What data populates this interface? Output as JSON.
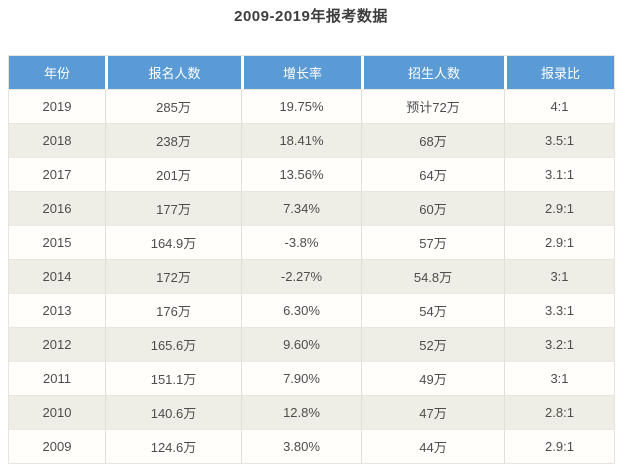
{
  "page": {
    "title": "2009-2019年报考数据"
  },
  "colors": {
    "header_bg": "#5b9bd5",
    "header_text": "#ffffff",
    "row_bg": "#fffefb",
    "row_alt_bg": "#efeee6",
    "body_text": "#4d4d4d",
    "title_text": "#3d3d3d",
    "divider": "#e2e1d9"
  },
  "table": {
    "headers": [
      "年份",
      "报名人数",
      "增长率",
      "招生人数",
      "报录比"
    ],
    "rows": [
      [
        "2019",
        "285万",
        "19.75%",
        "预计72万",
        "4:1"
      ],
      [
        "2018",
        "238万",
        "18.41%",
        "68万",
        "3.5:1"
      ],
      [
        "2017",
        "201万",
        "13.56%",
        "64万",
        "3.1:1"
      ],
      [
        "2016",
        "177万",
        "7.34%",
        "60万",
        "2.9:1"
      ],
      [
        "2015",
        "164.9万",
        "-3.8%",
        "57万",
        "2.9:1"
      ],
      [
        "2014",
        "172万",
        "-2.27%",
        "54.8万",
        "3:1"
      ],
      [
        "2013",
        "176万",
        "6.30%",
        "54万",
        "3.3:1"
      ],
      [
        "2012",
        "165.6万",
        "9.60%",
        "52万",
        "3.2:1"
      ],
      [
        "2011",
        "151.1万",
        "7.90%",
        "49万",
        "3:1"
      ],
      [
        "2010",
        "140.6万",
        "12.8%",
        "47万",
        "2.8:1"
      ],
      [
        "2009",
        "124.6万",
        "3.80%",
        "44万",
        "2.9:1"
      ]
    ]
  },
  "chart_data": {
    "type": "table",
    "title": "2009-2019年报考数据",
    "columns": [
      "年份",
      "报名人数",
      "增长率",
      "招生人数",
      "报录比"
    ],
    "rows": [
      [
        "2019",
        "285万",
        "19.75%",
        "预计72万",
        "4:1"
      ],
      [
        "2018",
        "238万",
        "18.41%",
        "68万",
        "3.5:1"
      ],
      [
        "2017",
        "201万",
        "13.56%",
        "64万",
        "3.1:1"
      ],
      [
        "2016",
        "177万",
        "7.34%",
        "60万",
        "2.9:1"
      ],
      [
        "2015",
        "164.9万",
        "-3.8%",
        "57万",
        "2.9:1"
      ],
      [
        "2014",
        "172万",
        "-2.27%",
        "54.8万",
        "3:1"
      ],
      [
        "2013",
        "176万",
        "6.30%",
        "54万",
        "3.3:1"
      ],
      [
        "2012",
        "165.6万",
        "9.60%",
        "52万",
        "3.2:1"
      ],
      [
        "2011",
        "151.1万",
        "7.90%",
        "49万",
        "3:1"
      ],
      [
        "2010",
        "140.6万",
        "12.8%",
        "47万",
        "2.8:1"
      ],
      [
        "2009",
        "124.6万",
        "3.80%",
        "44万",
        "2.9:1"
      ]
    ],
    "series": [
      {
        "name": "报名人数(万)",
        "x": [
          2009,
          2010,
          2011,
          2012,
          2013,
          2014,
          2015,
          2016,
          2017,
          2018,
          2019
        ],
        "values": [
          124.6,
          140.6,
          151.1,
          165.6,
          176,
          172,
          164.9,
          177,
          201,
          238,
          285
        ]
      },
      {
        "name": "增长率(%)",
        "x": [
          2009,
          2010,
          2011,
          2012,
          2013,
          2014,
          2015,
          2016,
          2017,
          2018,
          2019
        ],
        "values": [
          3.8,
          12.8,
          7.9,
          9.6,
          6.3,
          -2.27,
          -3.8,
          7.34,
          13.56,
          18.41,
          19.75
        ]
      },
      {
        "name": "招生人数(万)",
        "x": [
          2009,
          2010,
          2011,
          2012,
          2013,
          2014,
          2015,
          2016,
          2017,
          2018,
          2019
        ],
        "values": [
          44,
          47,
          49,
          52,
          54,
          54.8,
          57,
          60,
          64,
          68,
          72
        ]
      }
    ]
  }
}
